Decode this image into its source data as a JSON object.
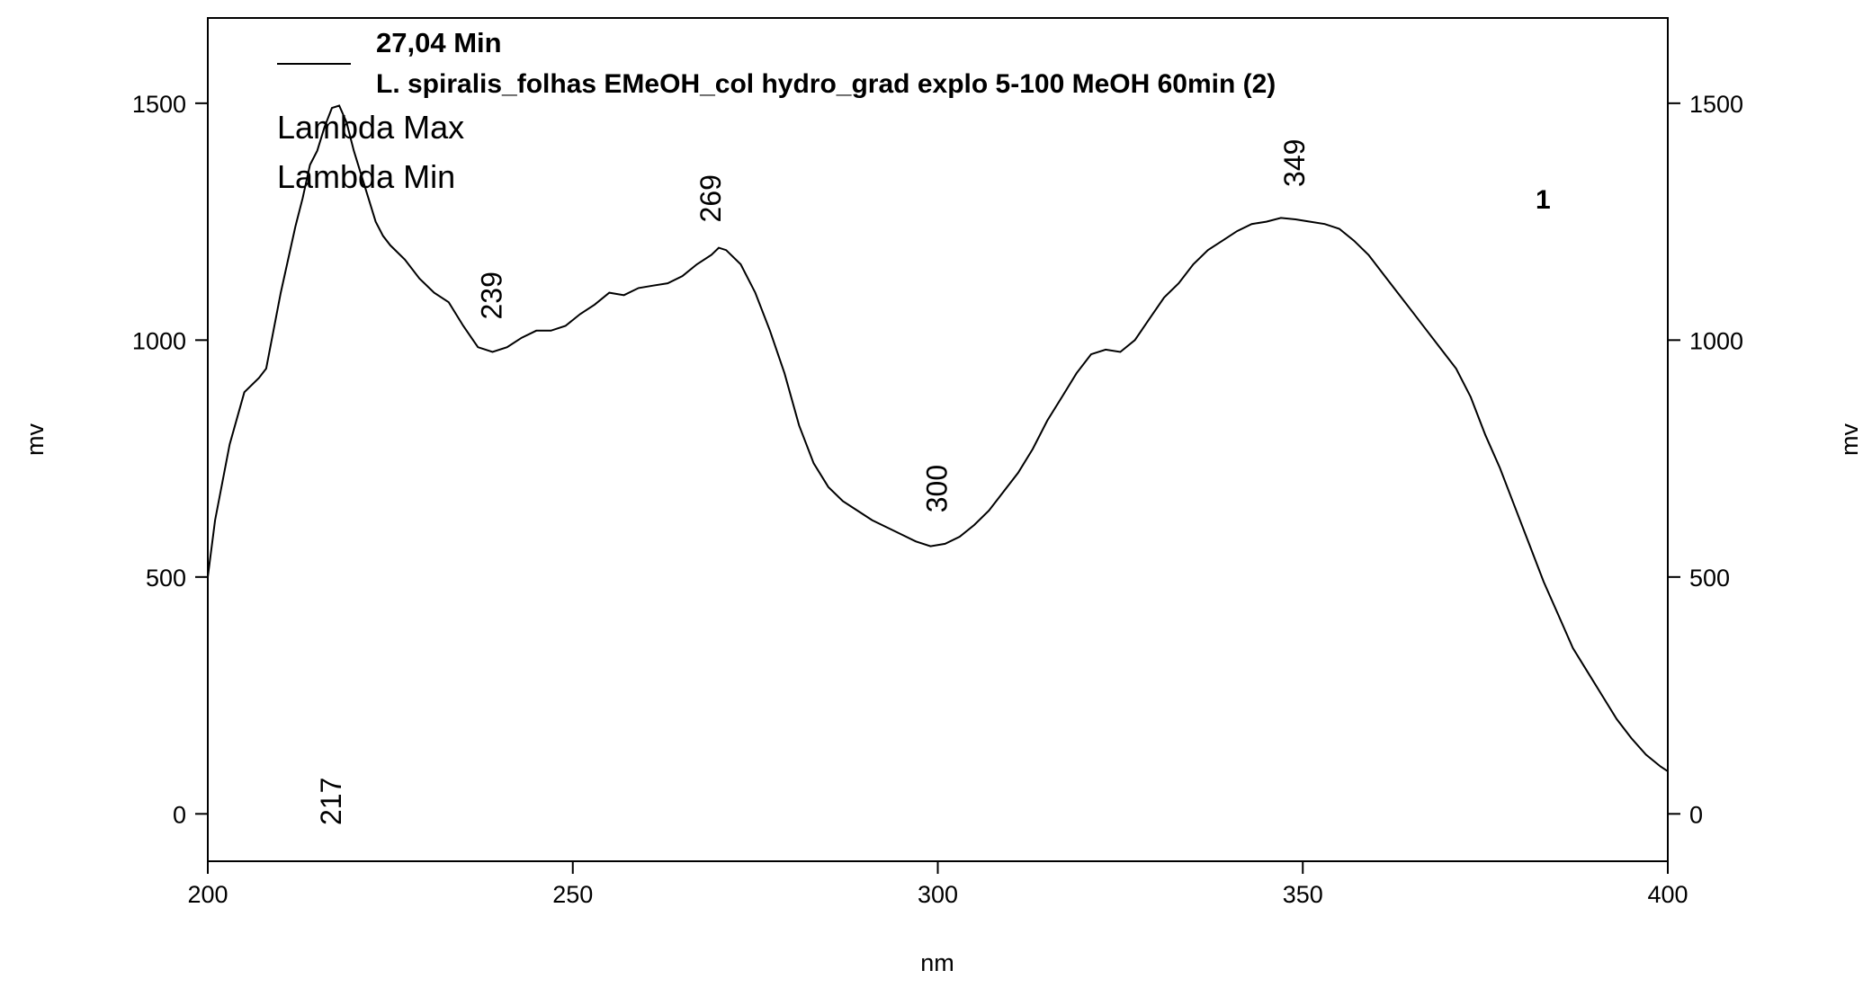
{
  "chart_data": {
    "type": "line",
    "legend_title": "27,04 Min",
    "series": [
      {
        "name": "L. spiralis_folhas EMeOH_col hydro_grad explo 5-100 MeOH 60min (2)",
        "color": "#000000",
        "x": [
          200,
          201,
          203,
          205,
          207,
          208,
          210,
          212,
          213,
          214,
          215,
          216,
          217,
          218,
          219,
          220,
          221,
          222,
          223,
          224,
          225,
          227,
          229,
          231,
          233,
          235,
          237,
          239,
          241,
          243,
          245,
          247,
          249,
          251,
          253,
          255,
          257,
          259,
          261,
          263,
          265,
          267,
          269,
          270,
          271,
          273,
          275,
          277,
          279,
          281,
          283,
          285,
          287,
          289,
          291,
          293,
          295,
          297,
          299,
          301,
          303,
          305,
          307,
          309,
          311,
          313,
          315,
          317,
          319,
          321,
          323,
          325,
          327,
          329,
          331,
          333,
          335,
          337,
          339,
          341,
          343,
          345,
          347,
          349,
          351,
          353,
          355,
          357,
          359,
          361,
          363,
          365,
          367,
          369,
          371,
          373,
          375,
          377,
          379,
          381,
          383,
          385,
          387,
          389,
          391,
          393,
          395,
          397,
          399,
          400
        ],
        "values": [
          500,
          620,
          780,
          890,
          920,
          940,
          1100,
          1240,
          1300,
          1370,
          1400,
          1450,
          1490,
          1495,
          1460,
          1400,
          1350,
          1300,
          1250,
          1220,
          1200,
          1170,
          1130,
          1100,
          1080,
          1030,
          985,
          975,
          985,
          1005,
          1020,
          1020,
          1030,
          1055,
          1075,
          1100,
          1095,
          1110,
          1115,
          1120,
          1135,
          1160,
          1180,
          1195,
          1190,
          1160,
          1100,
          1020,
          930,
          820,
          740,
          690,
          660,
          640,
          620,
          605,
          590,
          575,
          565,
          570,
          585,
          610,
          640,
          680,
          720,
          770,
          830,
          880,
          930,
          970,
          980,
          975,
          1000,
          1045,
          1090,
          1120,
          1160,
          1190,
          1210,
          1230,
          1245,
          1250,
          1258,
          1255,
          1250,
          1245,
          1235,
          1210,
          1180,
          1140,
          1100,
          1060,
          1020,
          980,
          940,
          880,
          800,
          730,
          650,
          570,
          490,
          420,
          350,
          300,
          250,
          200,
          160,
          125,
          100,
          90
        ]
      }
    ],
    "legend_lines": [
      "Lambda Max",
      "Lambda Min"
    ],
    "annotations": [
      217,
      239,
      269,
      300,
      349
    ],
    "peak_number": "1",
    "xlabel": "nm",
    "ylabel": "mv",
    "y2label": "mv",
    "xlim": [
      200,
      400
    ],
    "xticks": [
      200,
      250,
      300,
      350,
      400
    ],
    "ylim": [
      -100,
      1680
    ],
    "yticks": [
      0,
      500,
      1000,
      1500
    ],
    "y2lim": [
      -100,
      1680
    ],
    "y2ticks": [
      0,
      500,
      1000,
      1500
    ]
  }
}
